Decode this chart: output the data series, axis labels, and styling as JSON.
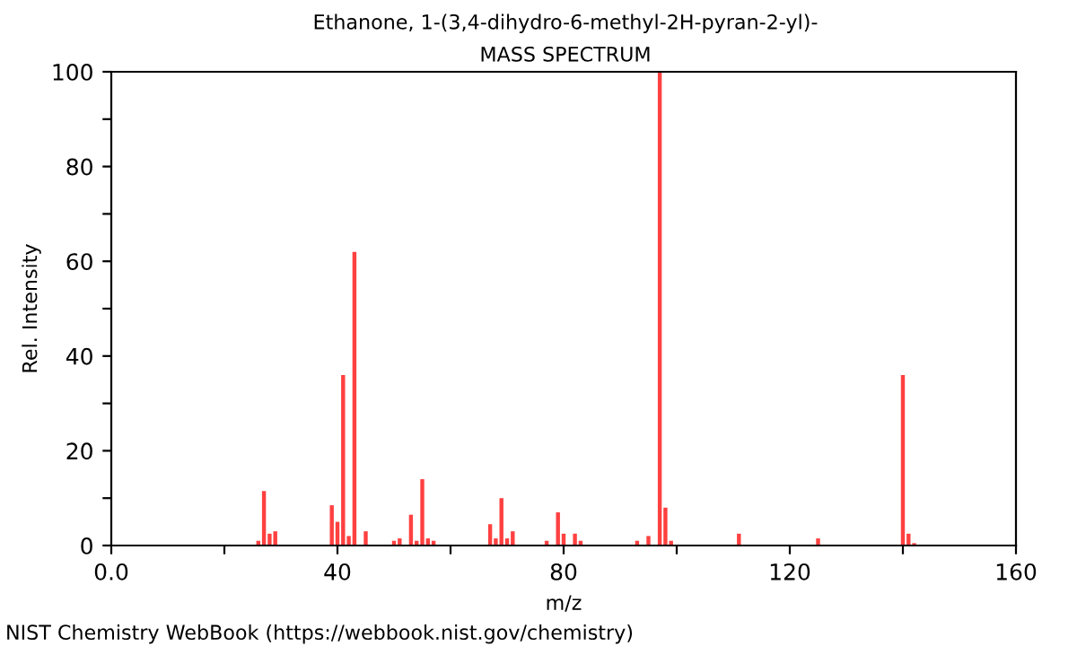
{
  "chart_data": {
    "type": "bar",
    "title": "Ethanone, 1-(3,4-dihydro-6-methyl-2H-pyran-2-yl)-",
    "subtitle": "MASS SPECTRUM",
    "xlabel": "m/z",
    "ylabel": "Rel. Intensity",
    "x": [
      26,
      27,
      28,
      29,
      39,
      40,
      41,
      42,
      43,
      45,
      50,
      51,
      53,
      54,
      55,
      56,
      57,
      67,
      68,
      69,
      70,
      71,
      77,
      79,
      80,
      82,
      83,
      93,
      95,
      97,
      98,
      99,
      111,
      125,
      140,
      141,
      142
    ],
    "values": [
      1,
      11.5,
      2.5,
      3,
      8.5,
      5,
      36,
      2,
      62,
      3,
      1,
      1.5,
      6.5,
      1,
      14,
      1.5,
      1,
      4.5,
      1.5,
      10,
      1.5,
      3,
      1,
      7,
      2.5,
      2.5,
      1,
      1,
      2,
      100,
      8,
      1,
      2.5,
      1.5,
      36,
      2.5,
      0.5
    ],
    "color": "#ff4040",
    "xlim": [
      0,
      160
    ],
    "ylim": [
      0,
      100
    ],
    "xticks": [
      {
        "value": 0,
        "label": "0.0"
      },
      {
        "value": 20,
        "label": null
      },
      40,
      {
        "value": 60,
        "label": null
      },
      80,
      {
        "value": 100,
        "label": null
      },
      120,
      {
        "value": 140,
        "label": null
      },
      160
    ],
    "yticks": [
      0,
      {
        "value": 10,
        "label": null
      },
      20,
      {
        "value": 30,
        "label": null
      },
      40,
      {
        "value": 50,
        "label": null
      },
      60,
      {
        "value": 70,
        "label": null
      },
      80,
      {
        "value": 90,
        "label": null
      },
      100
    ],
    "grid": false,
    "annotations": [
      "NIST Chemistry WebBook (https://webbook.nist.gov/chemistry)"
    ]
  }
}
